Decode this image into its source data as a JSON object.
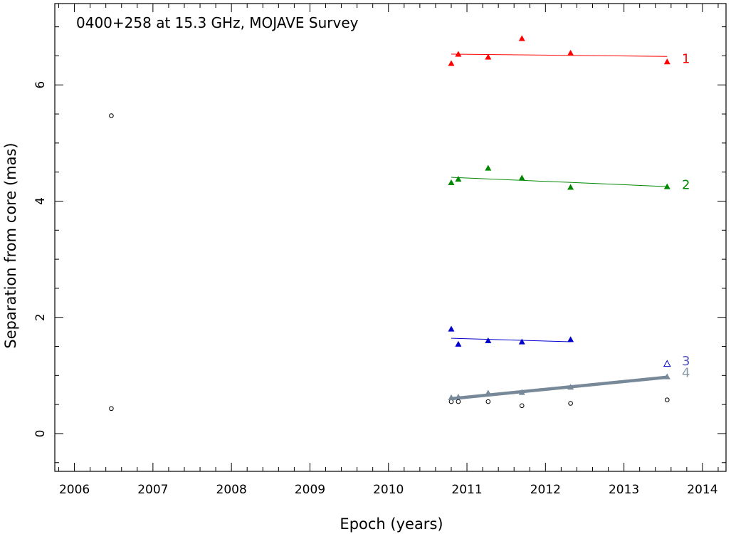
{
  "chart_data": {
    "type": "scatter",
    "title": "0400+258 at 15.3 GHz, MOJAVE Survey",
    "xlabel": "Epoch (years)",
    "ylabel": "Separation from core (mas)",
    "xlim": [
      2005.75,
      2014.3
    ],
    "ylim": [
      -0.65,
      7.4
    ],
    "x_ticks": [
      2006,
      2007,
      2008,
      2009,
      2010,
      2011,
      2012,
      2013,
      2014
    ],
    "y_ticks": [
      0,
      2,
      4,
      6
    ],
    "grid": false,
    "unassigned_points": {
      "marker": "open-circle",
      "color": "#000000",
      "points": [
        [
          2006.47,
          5.47
        ],
        [
          2006.47,
          0.43
        ],
        [
          2010.8,
          0.55
        ],
        [
          2010.89,
          0.55
        ],
        [
          2011.27,
          0.55
        ],
        [
          2011.7,
          0.48
        ],
        [
          2012.32,
          0.52
        ],
        [
          2013.55,
          0.58
        ]
      ]
    },
    "series": [
      {
        "name": "1",
        "color": "#ff0000",
        "marker": "filled-triangle",
        "points": [
          [
            2010.8,
            6.37
          ],
          [
            2010.89,
            6.53
          ],
          [
            2011.27,
            6.48
          ],
          [
            2011.7,
            6.8
          ],
          [
            2012.32,
            6.55
          ],
          [
            2013.55,
            6.4
          ]
        ],
        "fit": [
          [
            2010.8,
            6.53
          ],
          [
            2013.55,
            6.49
          ]
        ]
      },
      {
        "name": "2",
        "color": "#008800",
        "marker": "filled-triangle",
        "points": [
          [
            2010.8,
            4.32
          ],
          [
            2010.89,
            4.38
          ],
          [
            2011.27,
            4.57
          ],
          [
            2011.7,
            4.4
          ],
          [
            2012.32,
            4.24
          ],
          [
            2013.55,
            4.25
          ]
        ],
        "fit": [
          [
            2010.8,
            4.41
          ],
          [
            2013.55,
            4.25
          ]
        ]
      },
      {
        "name": "3",
        "color": "#0000cc",
        "label_color": "#5555bb",
        "marker": "filled-triangle",
        "points": [
          [
            2010.8,
            1.8
          ],
          [
            2010.89,
            1.54
          ],
          [
            2011.27,
            1.6
          ],
          [
            2011.7,
            1.58
          ],
          [
            2012.32,
            1.62
          ]
        ],
        "open_points": [
          [
            2013.55,
            1.2
          ]
        ],
        "fit": [
          [
            2010.8,
            1.64
          ],
          [
            2012.32,
            1.58
          ]
        ]
      },
      {
        "name": "4",
        "color": "#778899",
        "label_color": "#8899aa",
        "marker": "filled-triangle",
        "thick_fit": true,
        "points": [
          [
            2010.8,
            0.62
          ],
          [
            2010.89,
            0.63
          ],
          [
            2011.27,
            0.7
          ],
          [
            2011.7,
            0.71
          ],
          [
            2012.32,
            0.8
          ],
          [
            2013.55,
            0.98
          ]
        ],
        "fit": [
          [
            2010.8,
            0.6
          ],
          [
            2013.55,
            0.97
          ]
        ]
      }
    ]
  }
}
